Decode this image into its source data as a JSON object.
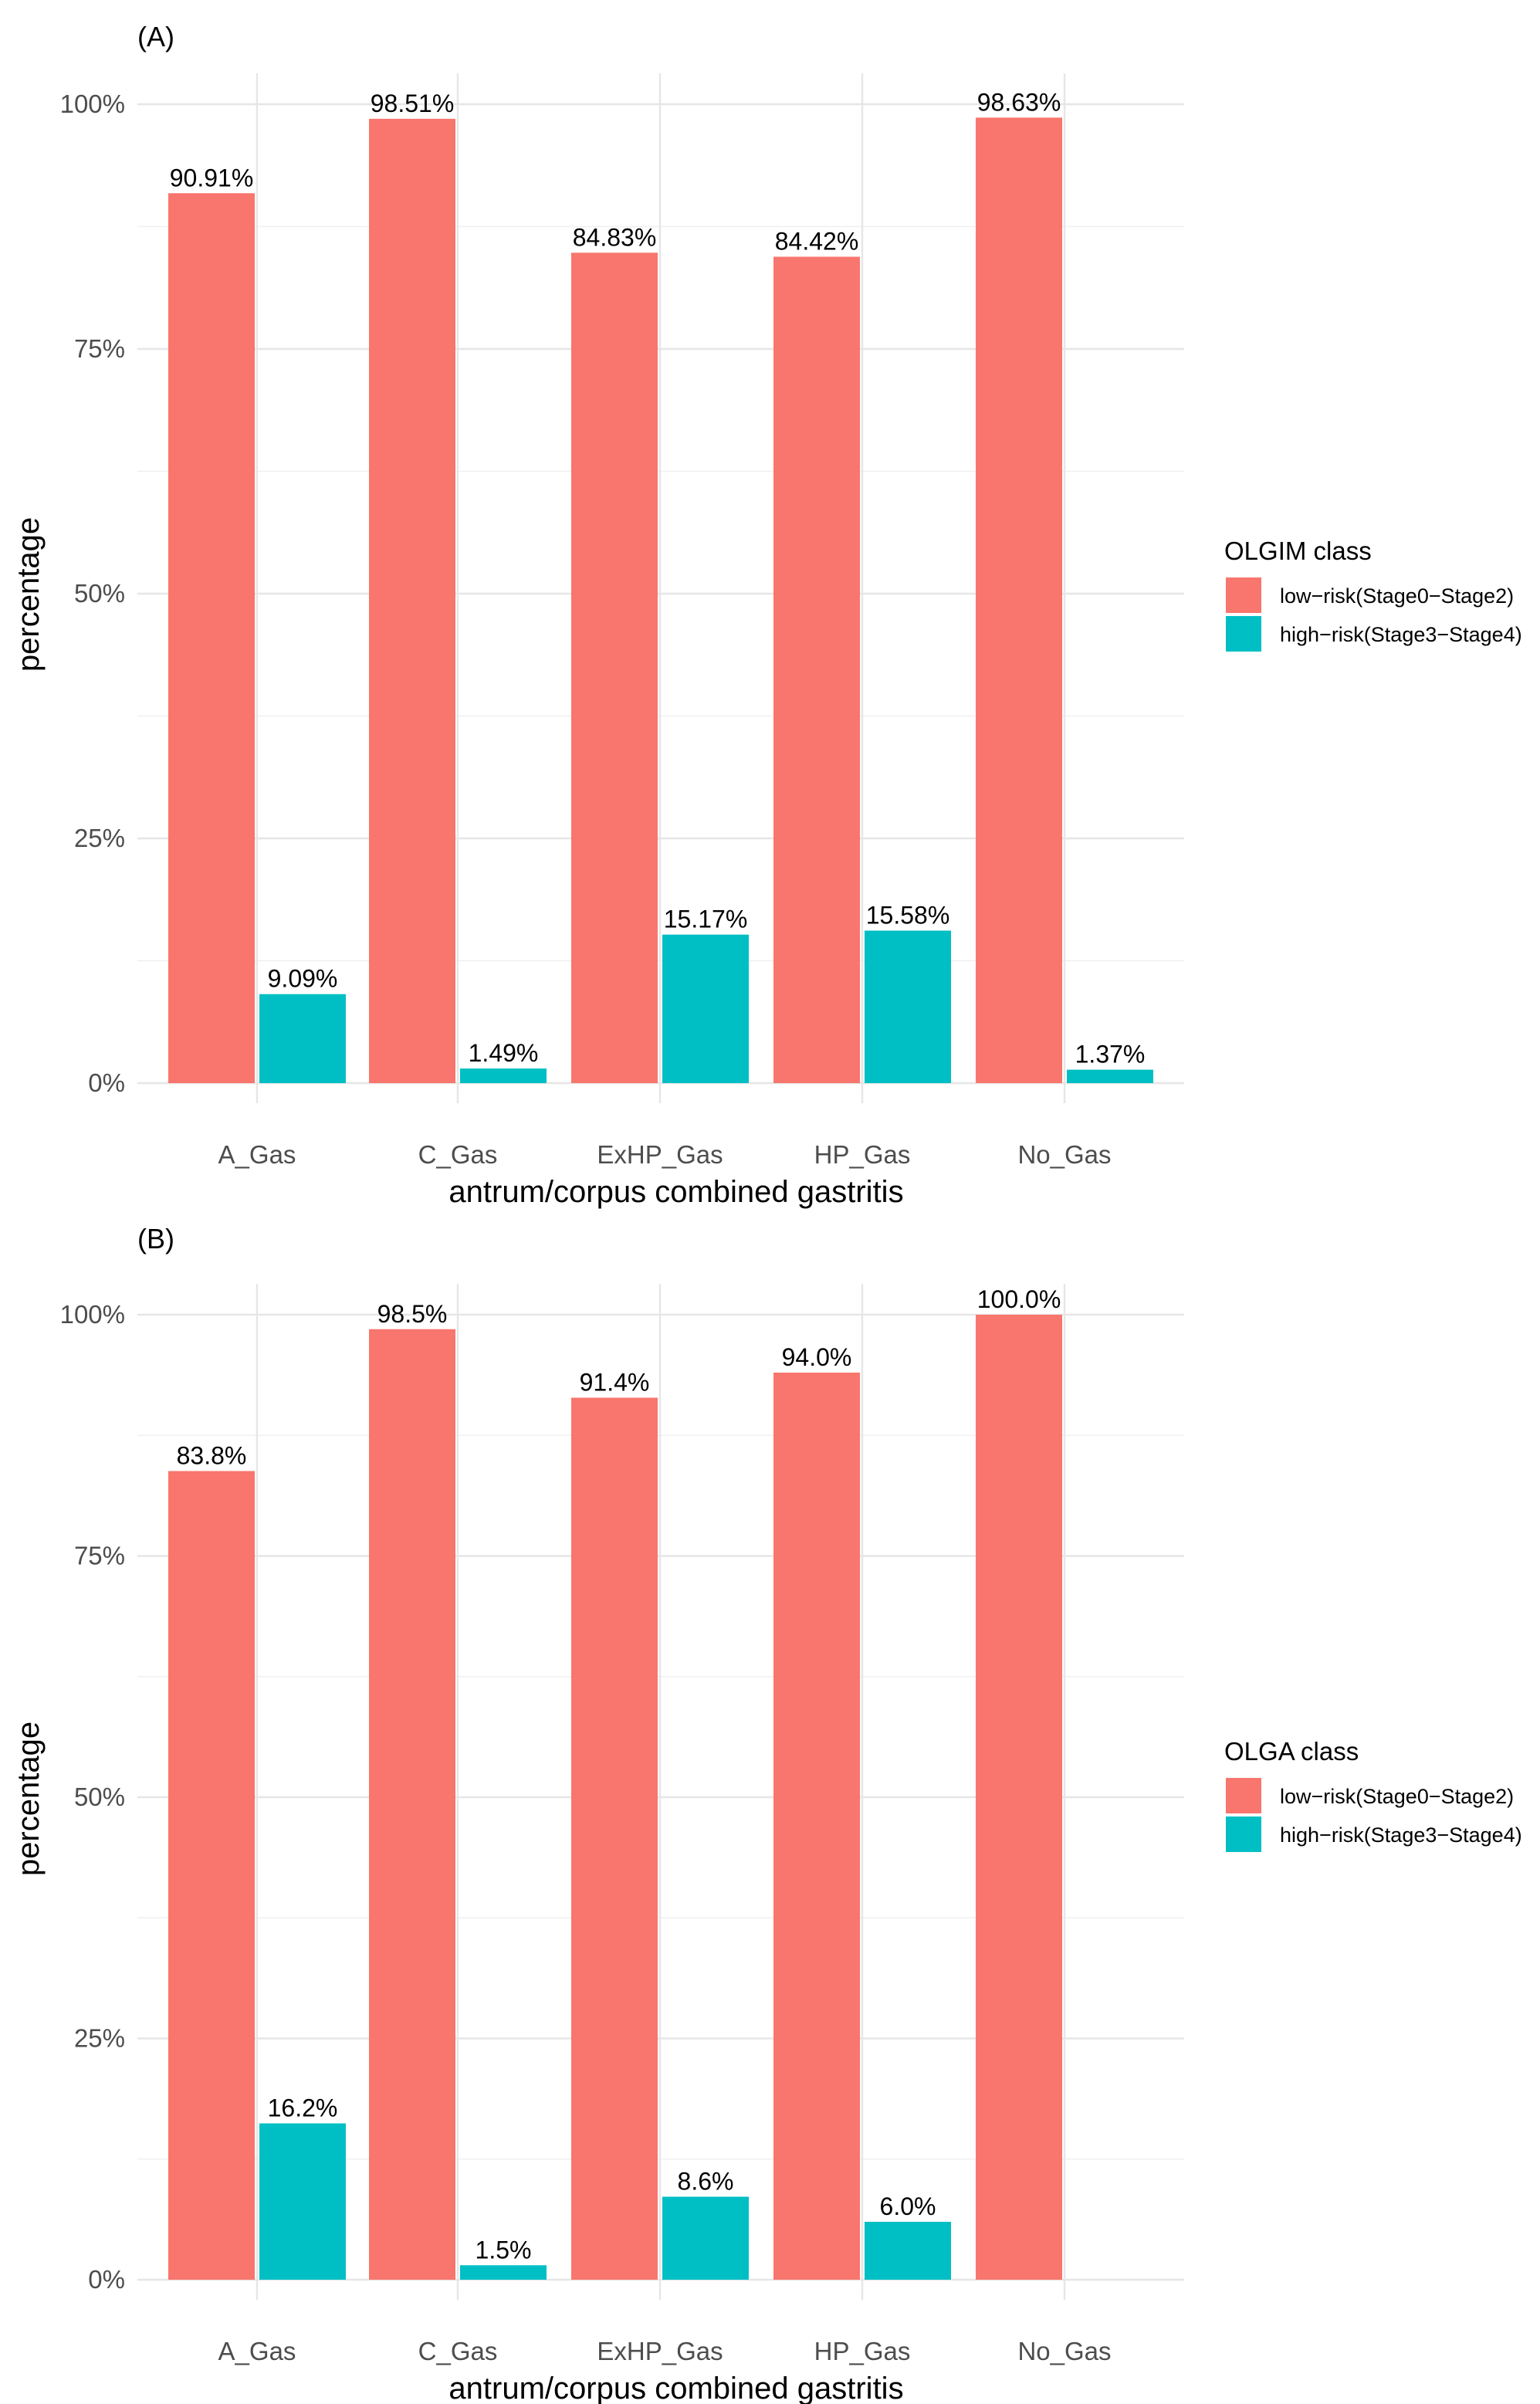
{
  "figure": {
    "panels": [
      "(A)",
      "(B)"
    ]
  },
  "chart_data": [
    {
      "panel": "(A)",
      "type": "bar",
      "xlabel": "antrum/corpus combined gastritis",
      "ylabel": "percentage",
      "ylim": [
        0,
        100
      ],
      "yticks": [
        0,
        25,
        50,
        75,
        100
      ],
      "ytick_labels": [
        "0%",
        "25%",
        "50%",
        "75%",
        "100%"
      ],
      "categories": [
        "A_Gas",
        "C_Gas",
        "ExHP_Gas",
        "HP_Gas",
        "No_Gas"
      ],
      "legend": {
        "title": "OLGIM class",
        "position": "right"
      },
      "series": [
        {
          "name": "low−risk(Stage0−Stage2)",
          "color": "#F8766D",
          "values": [
            90.91,
            98.51,
            84.83,
            84.42,
            98.63
          ],
          "labels": [
            "90.91%",
            "98.51%",
            "84.83%",
            "84.42%",
            "98.63%"
          ]
        },
        {
          "name": "high−risk(Stage3−Stage4)",
          "color": "#00BFC4",
          "values": [
            9.09,
            1.49,
            15.17,
            15.58,
            1.37
          ],
          "labels": [
            "9.09%",
            "1.49%",
            "15.17%",
            "15.58%",
            "1.37%"
          ]
        }
      ]
    },
    {
      "panel": "(B)",
      "type": "bar",
      "xlabel": "antrum/corpus combined gastritis",
      "ylabel": "percentage",
      "ylim": [
        0,
        100
      ],
      "yticks": [
        0,
        25,
        50,
        75,
        100
      ],
      "ytick_labels": [
        "0%",
        "25%",
        "50%",
        "75%",
        "100%"
      ],
      "categories": [
        "A_Gas",
        "C_Gas",
        "ExHP_Gas",
        "HP_Gas",
        "No_Gas"
      ],
      "legend": {
        "title": "OLGA class",
        "position": "right"
      },
      "series": [
        {
          "name": "low−risk(Stage0−Stage2)",
          "color": "#F8766D",
          "values": [
            83.8,
            98.5,
            91.4,
            94.0,
            100.0
          ],
          "labels": [
            "83.8%",
            "98.5%",
            "91.4%",
            "94.0%",
            "100.0%"
          ]
        },
        {
          "name": "high−risk(Stage3−Stage4)",
          "color": "#00BFC4",
          "values": [
            16.2,
            1.5,
            8.6,
            6.0,
            null
          ],
          "labels": [
            "16.2%",
            "1.5%",
            "8.6%",
            "6.0%",
            ""
          ]
        }
      ]
    }
  ]
}
